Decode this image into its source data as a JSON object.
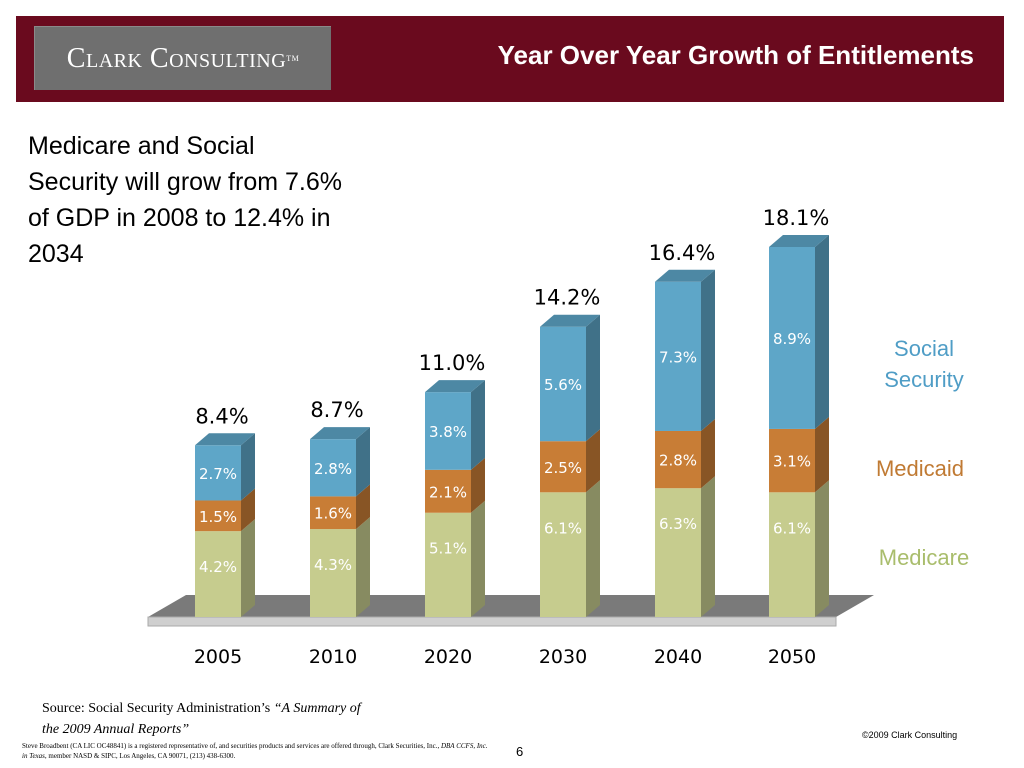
{
  "header": {
    "logo_text": "Clark Consulting",
    "logo_mark": "TM",
    "title": "Year Over Year Growth of Entitlements"
  },
  "subtitle": "Medicare and Social Security will grow from 7.6% of GDP in 2008 to 12.4% in 2034",
  "chart_data": {
    "type": "bar",
    "stacked": true,
    "categories": [
      "2005",
      "2010",
      "2020",
      "2030",
      "2040",
      "2050"
    ],
    "series": [
      {
        "name": "Medicare",
        "values": [
          4.2,
          4.3,
          5.1,
          6.1,
          6.3,
          6.1
        ],
        "labels": [
          "4.2%",
          "4.3%",
          "5.1%",
          "6.1%",
          "6.3%",
          "6.1%"
        ],
        "color": "#c6cc8e"
      },
      {
        "name": "Medicaid",
        "values": [
          1.5,
          1.6,
          2.1,
          2.5,
          2.8,
          3.1
        ],
        "labels": [
          "1.5%",
          "1.6%",
          "2.1%",
          "2.5%",
          "2.8%",
          "3.1%"
        ],
        "color": "#c87d36"
      },
      {
        "name": "Social Security",
        "values": [
          2.7,
          2.8,
          3.8,
          5.6,
          7.3,
          8.9
        ],
        "labels": [
          "2.7%",
          "2.8%",
          "3.8%",
          "5.6%",
          "7.3%",
          "8.9%"
        ],
        "color": "#5ea6c8"
      }
    ],
    "totals": [
      8.4,
      8.7,
      11.0,
      14.2,
      16.4,
      18.1
    ],
    "total_labels": [
      "8.4%",
      "8.7%",
      "11.0%",
      "14.2%",
      "16.4%",
      "18.1%"
    ],
    "legend": [
      {
        "text": "Social Security",
        "color": "#4f9dc6"
      },
      {
        "text": "Medicaid",
        "color": "#c07a33"
      },
      {
        "text": "Medicare",
        "color": "#a9bd6c"
      }
    ],
    "legend_position": "right",
    "grid": false,
    "ylim": [
      0,
      18.1
    ]
  },
  "source": {
    "prefix": "Source:  Social Security Administration’s ",
    "italic": "“A Summary of the 2009 Annual Reports”"
  },
  "footer": {
    "disclaimer_a": "Steve Broadbent  (CA LIC OC48841) is a registered representative of, and securities products and services are offered through, Clark Securities, Inc., ",
    "disclaimer_b": "DBA CCFS, Inc. in Texas",
    "disclaimer_c": ", member NASD & SIPC, Los Angeles, CA  90071, (213) 438-6300.",
    "page_number": "6",
    "copyright": "©2009 Clark Consulting"
  }
}
